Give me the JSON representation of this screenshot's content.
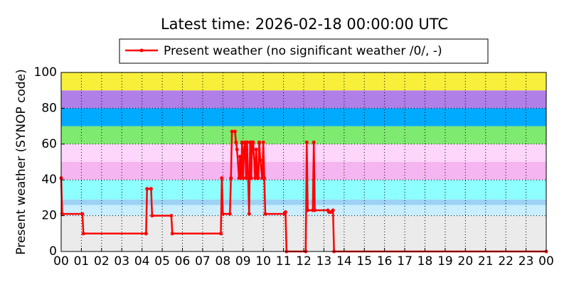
{
  "chart_data": {
    "type": "line",
    "title": "Latest time: 2026-02-18 00:00:00 UTC",
    "y_label": "Present weather (SYNOP code)",
    "xlim": [
      0,
      24
    ],
    "ylim": [
      0,
      100
    ],
    "xticks": [
      {
        "value": 0,
        "label": "00"
      },
      {
        "value": 1,
        "label": "01"
      },
      {
        "value": 2,
        "label": "02"
      },
      {
        "value": 3,
        "label": "03"
      },
      {
        "value": 4,
        "label": "04"
      },
      {
        "value": 5,
        "label": "05"
      },
      {
        "value": 6,
        "label": "06"
      },
      {
        "value": 7,
        "label": "07"
      },
      {
        "value": 8,
        "label": "08"
      },
      {
        "value": 9,
        "label": "09"
      },
      {
        "value": 10,
        "label": "10"
      },
      {
        "value": 11,
        "label": "11"
      },
      {
        "value": 12,
        "label": "12"
      },
      {
        "value": 13,
        "label": "13"
      },
      {
        "value": 14,
        "label": "14"
      },
      {
        "value": 15,
        "label": "15"
      },
      {
        "value": 16,
        "label": "16"
      },
      {
        "value": 17,
        "label": "17"
      },
      {
        "value": 18,
        "label": "18"
      },
      {
        "value": 19,
        "label": "19"
      },
      {
        "value": 20,
        "label": "20"
      },
      {
        "value": 21,
        "label": "21"
      },
      {
        "value": 22,
        "label": "22"
      },
      {
        "value": 23,
        "label": "23"
      },
      {
        "value": 24,
        "label": "00"
      }
    ],
    "yticks": [
      0,
      20,
      40,
      60,
      80,
      100
    ],
    "grid": true,
    "bands": [
      {
        "from": 0,
        "to": 20,
        "color": "#ebebeb"
      },
      {
        "from": 20,
        "to": 26,
        "color": "#c8eeff"
      },
      {
        "from": 26,
        "to": 29,
        "color": "#9dd2f5"
      },
      {
        "from": 29,
        "to": 40,
        "color": "#8effff"
      },
      {
        "from": 40,
        "to": 50,
        "color": "#f5b5f0"
      },
      {
        "from": 50,
        "to": 60,
        "color": "#ffd6fb"
      },
      {
        "from": 60,
        "to": 70,
        "color": "#7eea6f"
      },
      {
        "from": 70,
        "to": 80,
        "color": "#00aaff"
      },
      {
        "from": 80,
        "to": 90,
        "color": "#b07fe8"
      },
      {
        "from": 90,
        "to": 100,
        "color": "#f7ef3a"
      }
    ],
    "series": [
      {
        "name": "Present weather (no significant weather /0/, -)",
        "color": "#ff0000",
        "x": [
          0,
          0.05,
          1.05,
          1.1,
          4.2,
          4.25,
          4.45,
          4.5,
          5.45,
          5.5,
          7.9,
          7.95,
          8.0,
          8.35,
          8.4,
          8.45,
          8.6,
          8.65,
          8.7,
          8.8,
          8.85,
          8.9,
          8.95,
          9.0,
          9.05,
          9.1,
          9.15,
          9.2,
          9.3,
          9.35,
          9.4,
          9.45,
          9.5,
          9.6,
          9.65,
          9.7,
          9.75,
          9.8,
          9.85,
          9.95,
          10.0,
          10.05,
          10.1,
          11.05,
          11.1,
          11.15,
          12.1,
          12.15,
          12.2,
          12.45,
          12.5,
          12.55,
          13.2,
          13.25,
          13.35,
          13.45,
          13.5,
          24
        ],
        "values": [
          41,
          21,
          21,
          10,
          10,
          35,
          35,
          20,
          20,
          10,
          10,
          41,
          21,
          21,
          41,
          67,
          67,
          61,
          57,
          41,
          53,
          41,
          61,
          41,
          57,
          61,
          41,
          61,
          21,
          61,
          41,
          61,
          61,
          41,
          57,
          41,
          41,
          61,
          51,
          41,
          61,
          41,
          21,
          21,
          22,
          0,
          0,
          61,
          23,
          23,
          61,
          23,
          23,
          22,
          22,
          23,
          0,
          0
        ]
      }
    ]
  }
}
